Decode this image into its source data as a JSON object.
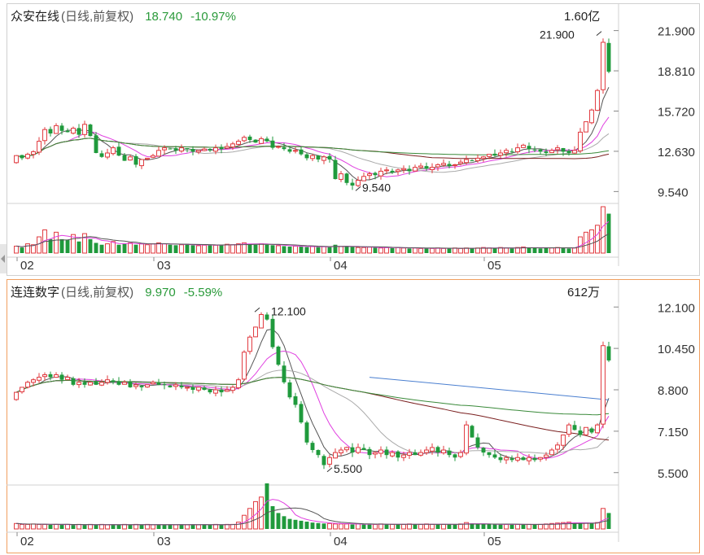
{
  "panels": [
    {
      "stock_name": "众安在线",
      "chart_type_label": "(日线,前复权)",
      "last_price": "18.740",
      "change_pct": "-10.97%",
      "volume_label": "1.60亿",
      "y_ticks": [
        "21.900",
        "18.810",
        "15.720",
        "12.630",
        "9.540"
      ],
      "x_ticks": [
        "02",
        "03",
        "04",
        "05"
      ],
      "max_annotation": "21.900",
      "min_annotation": "9.540"
    },
    {
      "stock_name": "连连数字",
      "chart_type_label": "(日线,前复权)",
      "last_price": "9.970",
      "change_pct": "-5.59%",
      "volume_label": "612万",
      "y_ticks": [
        "12.100",
        "10.450",
        "8.800",
        "7.150",
        "5.500"
      ],
      "x_ticks": [
        "02",
        "03",
        "04",
        "05"
      ],
      "max_annotation": "12.100",
      "min_annotation": "5.500"
    }
  ],
  "colors": {
    "up": "#e0393e",
    "down": "#1f9a3c",
    "ma5": "#555555",
    "ma10": "#e040e0",
    "ma20": "#aaaaaa",
    "ma60": "#7a1f1f",
    "ma120": "#3a8a3a",
    "ma250": "#4a7fd0"
  },
  "chart_data": [
    {
      "type": "candlestick",
      "title": "众安在线 (日线,前复权)",
      "ylim": [
        9.0,
        22.5
      ],
      "y_ticks": [
        21.9,
        18.81,
        15.72,
        12.63,
        9.54
      ],
      "x_tick_labels": [
        "02",
        "03",
        "04",
        "05"
      ],
      "x_tick_index": [
        1,
        25,
        56,
        83
      ],
      "high": 21.9,
      "low": 9.54,
      "close_levels": [
        12.3,
        12.1,
        12.4,
        12.6,
        13.4,
        14.3,
        14.0,
        14.6,
        14.2,
        14.1,
        14.4,
        13.9,
        14.7,
        13.8,
        12.5,
        12.2,
        12.5,
        12.9,
        12.3,
        11.9,
        12.2,
        11.6,
        12.0,
        12.1,
        12.3,
        12.7,
        12.9,
        12.8,
        12.7,
        12.9,
        12.8,
        12.6,
        12.7,
        12.8,
        12.7,
        12.9,
        12.8,
        13.0,
        13.2,
        13.4,
        13.7,
        13.5,
        13.3,
        13.6,
        13.4,
        12.9,
        13.0,
        12.8,
        12.6,
        12.7,
        12.4,
        12.1,
        12.3,
        12.0,
        12.2,
        12.0,
        10.5,
        10.9,
        10.2,
        10.0,
        10.4,
        10.7,
        10.9,
        10.8,
        11.1,
        11.2,
        11.0,
        11.2,
        11.3,
        11.1,
        11.4,
        11.5,
        11.3,
        11.4,
        11.6,
        11.7,
        11.5,
        11.6,
        11.8,
        12.0,
        11.9,
        12.1,
        12.2,
        12.4,
        12.3,
        12.5,
        12.7,
        12.6,
        12.9,
        13.1,
        12.8,
        12.7,
        12.6,
        12.5,
        12.7,
        12.9,
        12.6,
        12.5,
        12.7,
        14.1,
        14.9,
        15.8,
        17.3,
        21.0,
        18.74
      ],
      "volume_relative": [
        0.15,
        0.12,
        0.2,
        0.18,
        0.35,
        0.5,
        0.3,
        0.45,
        0.3,
        0.28,
        0.4,
        0.25,
        0.42,
        0.3,
        0.22,
        0.18,
        0.2,
        0.25,
        0.18,
        0.2,
        0.22,
        0.18,
        0.2,
        0.18,
        0.2,
        0.22,
        0.2,
        0.18,
        0.17,
        0.18,
        0.2,
        0.17,
        0.16,
        0.17,
        0.18,
        0.17,
        0.18,
        0.19,
        0.18,
        0.2,
        0.22,
        0.2,
        0.18,
        0.2,
        0.18,
        0.17,
        0.16,
        0.15,
        0.14,
        0.15,
        0.14,
        0.13,
        0.14,
        0.13,
        0.14,
        0.13,
        0.18,
        0.14,
        0.15,
        0.13,
        0.12,
        0.12,
        0.13,
        0.12,
        0.11,
        0.12,
        0.11,
        0.12,
        0.11,
        0.1,
        0.11,
        0.1,
        0.11,
        0.1,
        0.11,
        0.1,
        0.1,
        0.11,
        0.1,
        0.11,
        0.1,
        0.11,
        0.12,
        0.11,
        0.1,
        0.12,
        0.11,
        0.1,
        0.12,
        0.13,
        0.12,
        0.11,
        0.1,
        0.12,
        0.11,
        0.12,
        0.11,
        0.1,
        0.11,
        0.35,
        0.45,
        0.5,
        0.6,
        1.0,
        0.85
      ]
    },
    {
      "type": "candlestick",
      "title": "连连数字 (日线,前复权)",
      "ylim": [
        5.2,
        12.4
      ],
      "y_ticks": [
        12.1,
        10.45,
        8.8,
        7.15,
        5.5
      ],
      "x_tick_labels": [
        "02",
        "03",
        "04",
        "05"
      ],
      "x_tick_index": [
        1,
        25,
        56,
        83
      ],
      "high": 12.1,
      "low": 5.5,
      "close_levels": [
        8.7,
        8.9,
        9.1,
        9.2,
        9.3,
        9.4,
        9.3,
        9.4,
        9.2,
        9.3,
        9.0,
        9.1,
        9.0,
        9.1,
        9.0,
        9.1,
        9.2,
        9.1,
        9.0,
        9.1,
        8.9,
        9.0,
        8.9,
        9.0,
        9.1,
        9.0,
        9.0,
        8.9,
        9.0,
        8.9,
        8.9,
        8.8,
        8.9,
        8.8,
        8.7,
        8.8,
        8.7,
        8.8,
        8.9,
        9.2,
        10.3,
        10.9,
        11.3,
        11.8,
        11.6,
        10.5,
        9.8,
        9.1,
        8.5,
        8.2,
        7.5,
        6.7,
        6.4,
        6.2,
        5.8,
        6.1,
        6.3,
        6.4,
        6.5,
        6.3,
        6.5,
        6.4,
        6.2,
        6.3,
        6.4,
        6.2,
        6.3,
        6.1,
        6.2,
        6.3,
        6.2,
        6.3,
        6.4,
        6.5,
        6.3,
        6.4,
        6.2,
        6.1,
        6.3,
        7.4,
        6.9,
        6.5,
        6.3,
        6.2,
        6.1,
        6.0,
        6.1,
        6.0,
        6.1,
        6.0,
        6.1,
        6.0,
        6.1,
        6.2,
        6.4,
        6.6,
        7.0,
        7.4,
        7.2,
        7.0,
        7.3,
        7.1,
        7.4,
        10.56,
        9.97
      ],
      "volume_relative": [
        0.12,
        0.1,
        0.1,
        0.11,
        0.1,
        0.1,
        0.09,
        0.1,
        0.09,
        0.1,
        0.09,
        0.1,
        0.09,
        0.1,
        0.09,
        0.1,
        0.09,
        0.1,
        0.09,
        0.1,
        0.09,
        0.1,
        0.09,
        0.1,
        0.09,
        0.1,
        0.09,
        0.1,
        0.09,
        0.1,
        0.09,
        0.1,
        0.09,
        0.1,
        0.09,
        0.1,
        0.09,
        0.1,
        0.1,
        0.15,
        0.3,
        0.45,
        0.6,
        0.7,
        1.0,
        0.5,
        0.35,
        0.28,
        0.22,
        0.2,
        0.18,
        0.16,
        0.14,
        0.13,
        0.12,
        0.12,
        0.11,
        0.11,
        0.11,
        0.1,
        0.11,
        0.1,
        0.1,
        0.1,
        0.11,
        0.1,
        0.1,
        0.1,
        0.1,
        0.11,
        0.1,
        0.1,
        0.11,
        0.1,
        0.1,
        0.1,
        0.1,
        0.1,
        0.11,
        0.14,
        0.12,
        0.1,
        0.1,
        0.1,
        0.1,
        0.1,
        0.1,
        0.1,
        0.1,
        0.1,
        0.1,
        0.1,
        0.1,
        0.11,
        0.12,
        0.13,
        0.14,
        0.15,
        0.13,
        0.12,
        0.13,
        0.12,
        0.14,
        0.45,
        0.35
      ]
    }
  ]
}
